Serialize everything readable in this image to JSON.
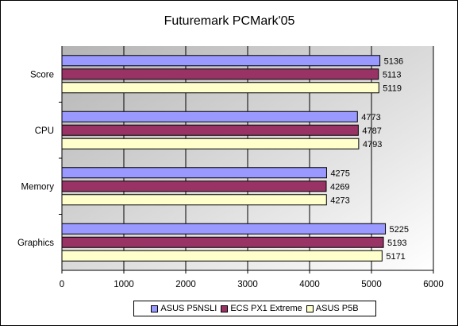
{
  "chart_data": {
    "type": "bar",
    "orientation": "horizontal",
    "title": "Futuremark PCMark'05",
    "categories": [
      "Score",
      "CPU",
      "Memory",
      "Graphics"
    ],
    "series": [
      {
        "name": "ASUS P5NSLI",
        "values": [
          5136,
          4773,
          4275,
          5225
        ],
        "color": "#9999ff"
      },
      {
        "name": "ECS PX1 Extreme",
        "values": [
          5113,
          4787,
          4269,
          5193
        ],
        "color": "#993366"
      },
      {
        "name": "ASUS P5B",
        "values": [
          5119,
          4793,
          4273,
          5171
        ],
        "color": "#ffffcc"
      }
    ],
    "xlim": [
      0,
      6000
    ],
    "xticks": [
      "0",
      "1000",
      "2000",
      "3000",
      "4000",
      "5000",
      "6000"
    ],
    "xlabel": "",
    "ylabel": "",
    "grid": "vertical",
    "plot_background": "#c0c0c0 to #ffffff gradient",
    "legend_position": "bottom",
    "data_labels": true
  }
}
